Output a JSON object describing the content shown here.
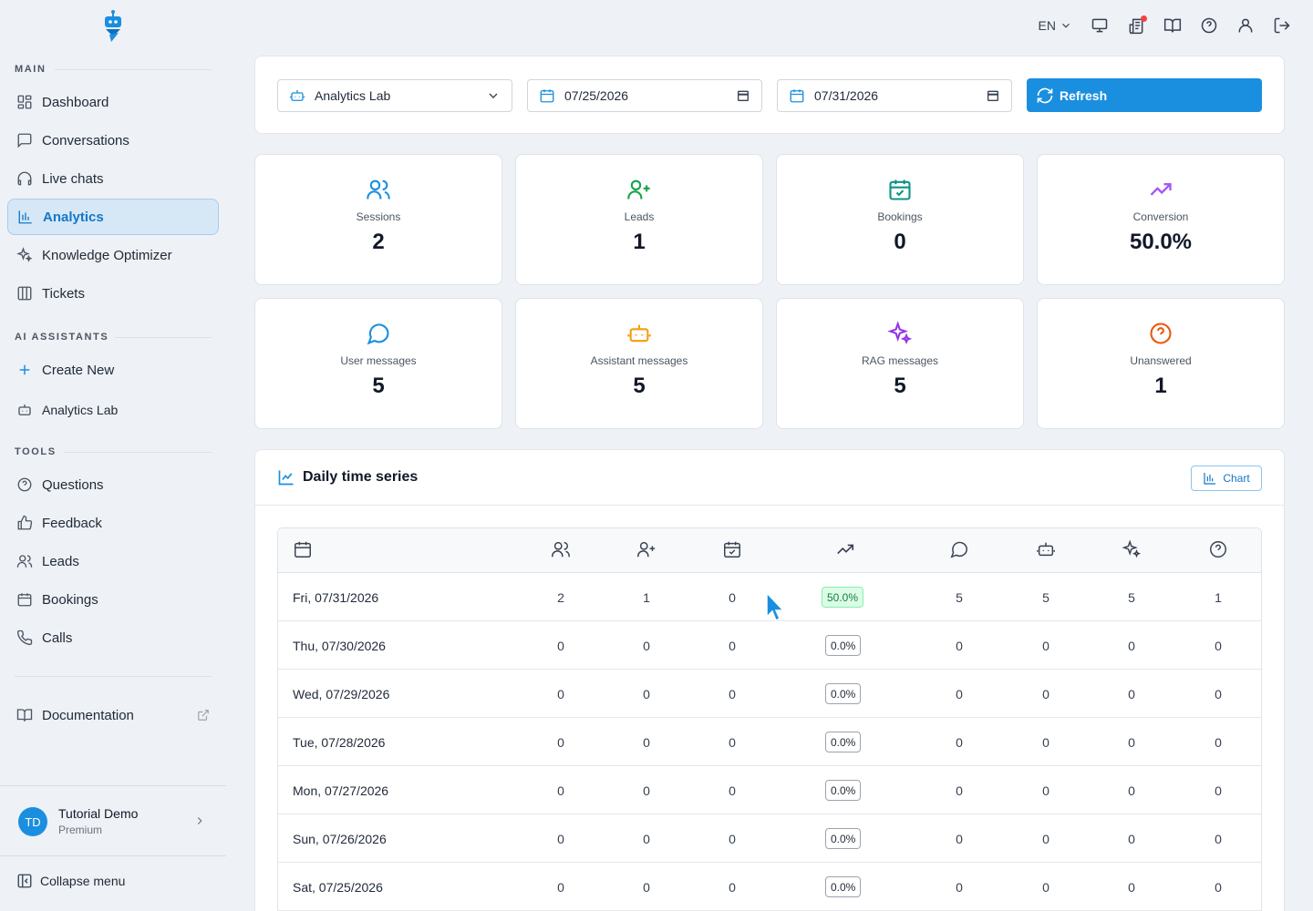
{
  "topbar": {
    "language": "EN",
    "icons": [
      "monitor-icon",
      "news-icon",
      "book-open-icon",
      "help-circle-icon",
      "user-icon",
      "logout-icon"
    ]
  },
  "sidebar": {
    "sections": {
      "main": "MAIN",
      "assistants": "AI ASSISTANTS",
      "tools": "TOOLS"
    },
    "main_items": [
      {
        "label": "Dashboard",
        "icon": "dashboard-icon"
      },
      {
        "label": "Conversations",
        "icon": "message-square-icon"
      },
      {
        "label": "Live chats",
        "icon": "headphones-icon"
      },
      {
        "label": "Analytics",
        "icon": "bar-chart-icon",
        "active": true
      },
      {
        "label": "Knowledge Optimizer",
        "icon": "sparkles-icon"
      },
      {
        "label": "Tickets",
        "icon": "columns-icon"
      }
    ],
    "assistant_items": [
      {
        "label": "Create New",
        "icon": "plus-icon"
      },
      {
        "label": "Analytics Lab",
        "icon": "bot-icon"
      }
    ],
    "tool_items": [
      {
        "label": "Questions",
        "icon": "help-circle-icon"
      },
      {
        "label": "Feedback",
        "icon": "thumbs-up-icon"
      },
      {
        "label": "Leads",
        "icon": "users-icon"
      },
      {
        "label": "Bookings",
        "icon": "calendar-icon"
      },
      {
        "label": "Calls",
        "icon": "phone-icon"
      }
    ],
    "documentation": "Documentation",
    "user": {
      "initials": "TD",
      "name": "Tutorial Demo",
      "plan": "Premium"
    },
    "collapse": "Collapse menu"
  },
  "filters": {
    "assistant": "Analytics Lab",
    "start_date": "07/25/2026",
    "end_date": "07/31/2026",
    "refresh": "Refresh"
  },
  "stats": [
    {
      "label": "Sessions",
      "value": "2",
      "icon": "users-icon",
      "color": "#1a8fe0"
    },
    {
      "label": "Leads",
      "value": "1",
      "icon": "user-plus-icon",
      "color": "#16a34a"
    },
    {
      "label": "Bookings",
      "value": "0",
      "icon": "calendar-check-icon",
      "color": "#0d9488"
    },
    {
      "label": "Conversion",
      "value": "50.0%",
      "icon": "trending-up-icon",
      "color": "#a855f7"
    },
    {
      "label": "User messages",
      "value": "5",
      "icon": "message-circle-icon",
      "color": "#1a8fe0"
    },
    {
      "label": "Assistant messages",
      "value": "5",
      "icon": "bot-icon",
      "color": "#f59e0b"
    },
    {
      "label": "RAG messages",
      "value": "5",
      "icon": "sparkles-icon",
      "color": "#9333ea"
    },
    {
      "label": "Unanswered",
      "value": "1",
      "icon": "help-circle-icon",
      "color": "#ea580c"
    }
  ],
  "timeseries": {
    "title": "Daily time series",
    "chart_button": "Chart",
    "rows": [
      {
        "date": "Fri, 07/31/2026",
        "sessions": "2",
        "leads": "1",
        "bookings": "0",
        "conversion": "50.0%",
        "user": "5",
        "assistant": "5",
        "rag": "5",
        "unanswered": "1"
      },
      {
        "date": "Thu, 07/30/2026",
        "sessions": "0",
        "leads": "0",
        "bookings": "0",
        "conversion": "0.0%",
        "user": "0",
        "assistant": "0",
        "rag": "0",
        "unanswered": "0"
      },
      {
        "date": "Wed, 07/29/2026",
        "sessions": "0",
        "leads": "0",
        "bookings": "0",
        "conversion": "0.0%",
        "user": "0",
        "assistant": "0",
        "rag": "0",
        "unanswered": "0"
      },
      {
        "date": "Tue, 07/28/2026",
        "sessions": "0",
        "leads": "0",
        "bookings": "0",
        "conversion": "0.0%",
        "user": "0",
        "assistant": "0",
        "rag": "0",
        "unanswered": "0"
      },
      {
        "date": "Mon, 07/27/2026",
        "sessions": "0",
        "leads": "0",
        "bookings": "0",
        "conversion": "0.0%",
        "user": "0",
        "assistant": "0",
        "rag": "0",
        "unanswered": "0"
      },
      {
        "date": "Sun, 07/26/2026",
        "sessions": "0",
        "leads": "0",
        "bookings": "0",
        "conversion": "0.0%",
        "user": "0",
        "assistant": "0",
        "rag": "0",
        "unanswered": "0"
      },
      {
        "date": "Sat, 07/25/2026",
        "sessions": "0",
        "leads": "0",
        "bookings": "0",
        "conversion": "0.0%",
        "user": "0",
        "assistant": "0",
        "rag": "0",
        "unanswered": "0"
      }
    ]
  }
}
